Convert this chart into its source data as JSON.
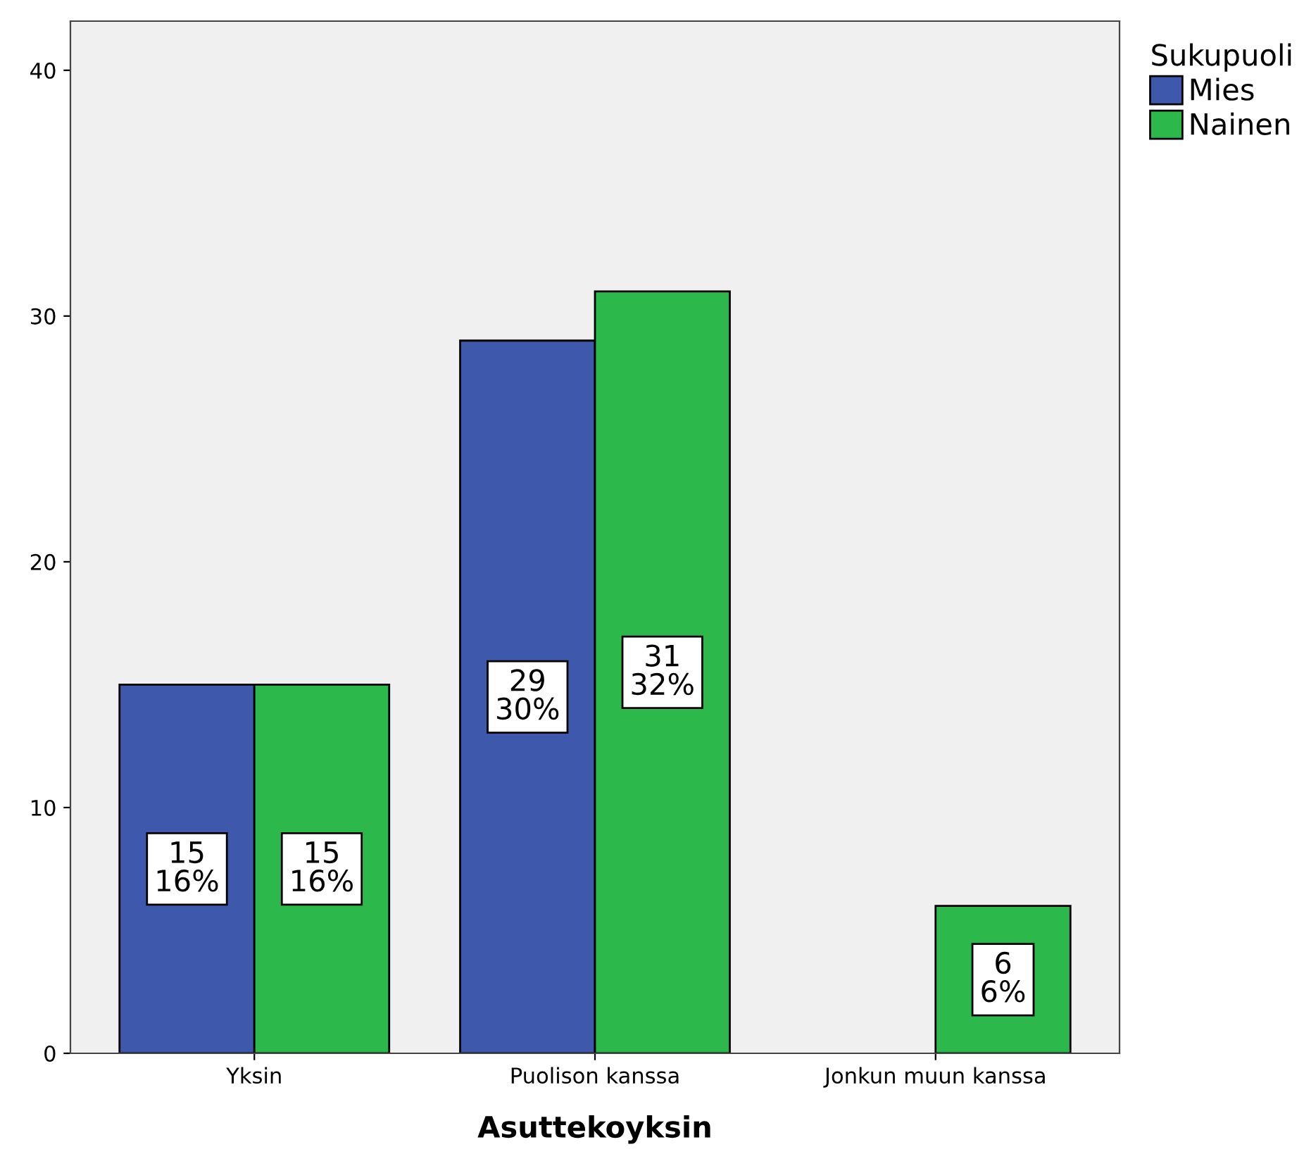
{
  "chart_data": {
    "type": "bar",
    "xlabel": "Asuttekoyksin",
    "legend_title": "Sukupuoli",
    "legend": "top right",
    "categories": [
      "Yksin",
      "Puolison kanssa",
      "Jonkun muun kanssa"
    ],
    "series": [
      {
        "name": "Mies",
        "color": "#3e58ac",
        "values": [
          15,
          29,
          null
        ],
        "value_labels": [
          "15\n16%",
          "29\n30%",
          null
        ]
      },
      {
        "name": "Nainen",
        "color": "#2db84b",
        "values": [
          15,
          31,
          6
        ],
        "value_labels": [
          "15\n16%",
          "31\n32%",
          "6\n6%"
        ]
      }
    ],
    "ylim": [
      0,
      42
    ],
    "yticks": [
      0,
      10,
      20,
      30,
      40
    ],
    "grid": false
  }
}
